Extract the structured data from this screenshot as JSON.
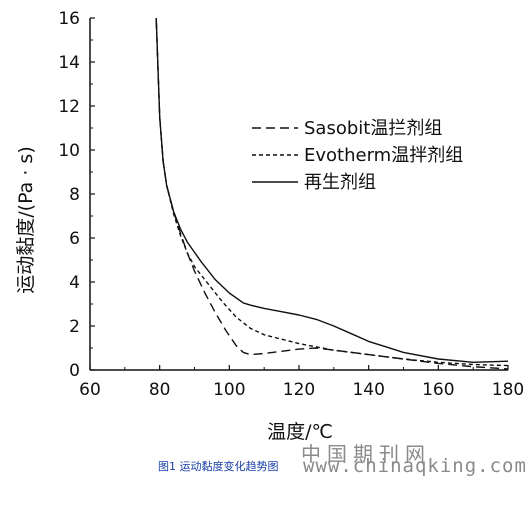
{
  "chart_data": {
    "type": "line",
    "xlabel": "温度/℃",
    "ylabel": "运动黏度/(Pa · s)",
    "xlim": [
      60,
      180
    ],
    "ylim": [
      0,
      16
    ],
    "xticks": [
      60,
      80,
      100,
      120,
      140,
      160,
      180
    ],
    "yticks": [
      0,
      2,
      4,
      6,
      8,
      10,
      12,
      14,
      16
    ],
    "legend_position": "upper-right",
    "grid": false,
    "series": [
      {
        "name": "Sasobit温拦剂组",
        "style": "dashed",
        "x": [
          79,
          80,
          81,
          82,
          84,
          86,
          88,
          90,
          93,
          96,
          99,
          102,
          104,
          106,
          110,
          115,
          120,
          125,
          130,
          140,
          150,
          160,
          170,
          180
        ],
        "y": [
          16,
          11.5,
          9.5,
          8.4,
          7.2,
          6.2,
          5.3,
          4.5,
          3.5,
          2.6,
          1.8,
          1.1,
          0.8,
          0.7,
          0.75,
          0.85,
          0.95,
          1.0,
          0.9,
          0.7,
          0.5,
          0.3,
          0.15,
          0.05
        ]
      },
      {
        "name": "Evotherm温拌剂组",
        "style": "dotted",
        "x": [
          79,
          80,
          81,
          82,
          84,
          86,
          88,
          90,
          94,
          98,
          102,
          106,
          110,
          115,
          120,
          130,
          140,
          150,
          160,
          170,
          180
        ],
        "y": [
          16,
          11.5,
          9.5,
          8.4,
          7.1,
          6.1,
          5.3,
          4.7,
          3.9,
          3.1,
          2.4,
          1.9,
          1.6,
          1.4,
          1.2,
          0.9,
          0.7,
          0.5,
          0.35,
          0.25,
          0.2
        ]
      },
      {
        "name": "再生剂组",
        "style": "solid",
        "x": [
          79,
          80,
          81,
          82,
          84,
          86,
          88,
          92,
          96,
          100,
          104,
          106,
          110,
          115,
          120,
          125,
          130,
          135,
          140,
          150,
          160,
          170,
          180
        ],
        "y": [
          16,
          11.5,
          9.5,
          8.4,
          7.2,
          6.4,
          5.8,
          4.9,
          4.1,
          3.5,
          3.05,
          2.95,
          2.8,
          2.65,
          2.5,
          2.3,
          2.0,
          1.65,
          1.3,
          0.8,
          0.5,
          0.35,
          0.4
        ]
      }
    ]
  },
  "watermark": "中国期刊网",
  "caption": "图1 运动黏度变化趋势图",
  "site": "www.chinaqking.com"
}
